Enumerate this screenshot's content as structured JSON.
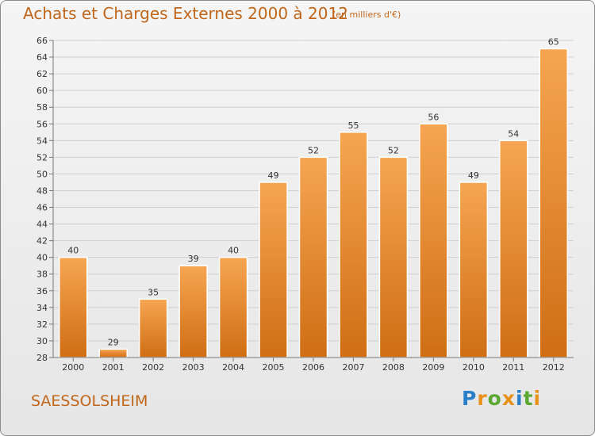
{
  "title": "Achats et Charges Externes 2000 à 2012",
  "unit": "(en milliers d'€)",
  "commune": "SAESSOLSHEIM",
  "logo": {
    "text": "Proxiti",
    "letters": [
      {
        "ch": "P",
        "color": "#2a7fc9"
      },
      {
        "ch": "r",
        "color": "#e8921c"
      },
      {
        "ch": "o",
        "color": "#5aa832"
      },
      {
        "ch": "x",
        "color": "#e8921c"
      },
      {
        "ch": "i",
        "color": "#2a7fc9"
      },
      {
        "ch": "t",
        "color": "#5aa832"
      },
      {
        "ch": "i",
        "color": "#e8921c"
      }
    ]
  },
  "chart_data": {
    "type": "bar",
    "title": "Achats et Charges Externes 2000 à 2012",
    "subtitle": "(en milliers d'€)",
    "xlabel": "",
    "ylabel": "",
    "categories": [
      "2000",
      "2001",
      "2002",
      "2003",
      "2004",
      "2005",
      "2006",
      "2007",
      "2008",
      "2009",
      "2010",
      "2011",
      "2012"
    ],
    "values": [
      40,
      29,
      35,
      39,
      40,
      49,
      52,
      55,
      52,
      56,
      49,
      54,
      65
    ],
    "ylim": [
      28,
      66
    ],
    "yticks": [
      28,
      30,
      32,
      34,
      36,
      38,
      40,
      42,
      44,
      46,
      48,
      50,
      52,
      54,
      56,
      58,
      60,
      62,
      64,
      66
    ],
    "grid": true,
    "legend": "none",
    "colors": {
      "bar_top": "#f6a552",
      "bar_bottom": "#cf6e14",
      "text": "#333333",
      "accent": "#c0661b"
    }
  }
}
